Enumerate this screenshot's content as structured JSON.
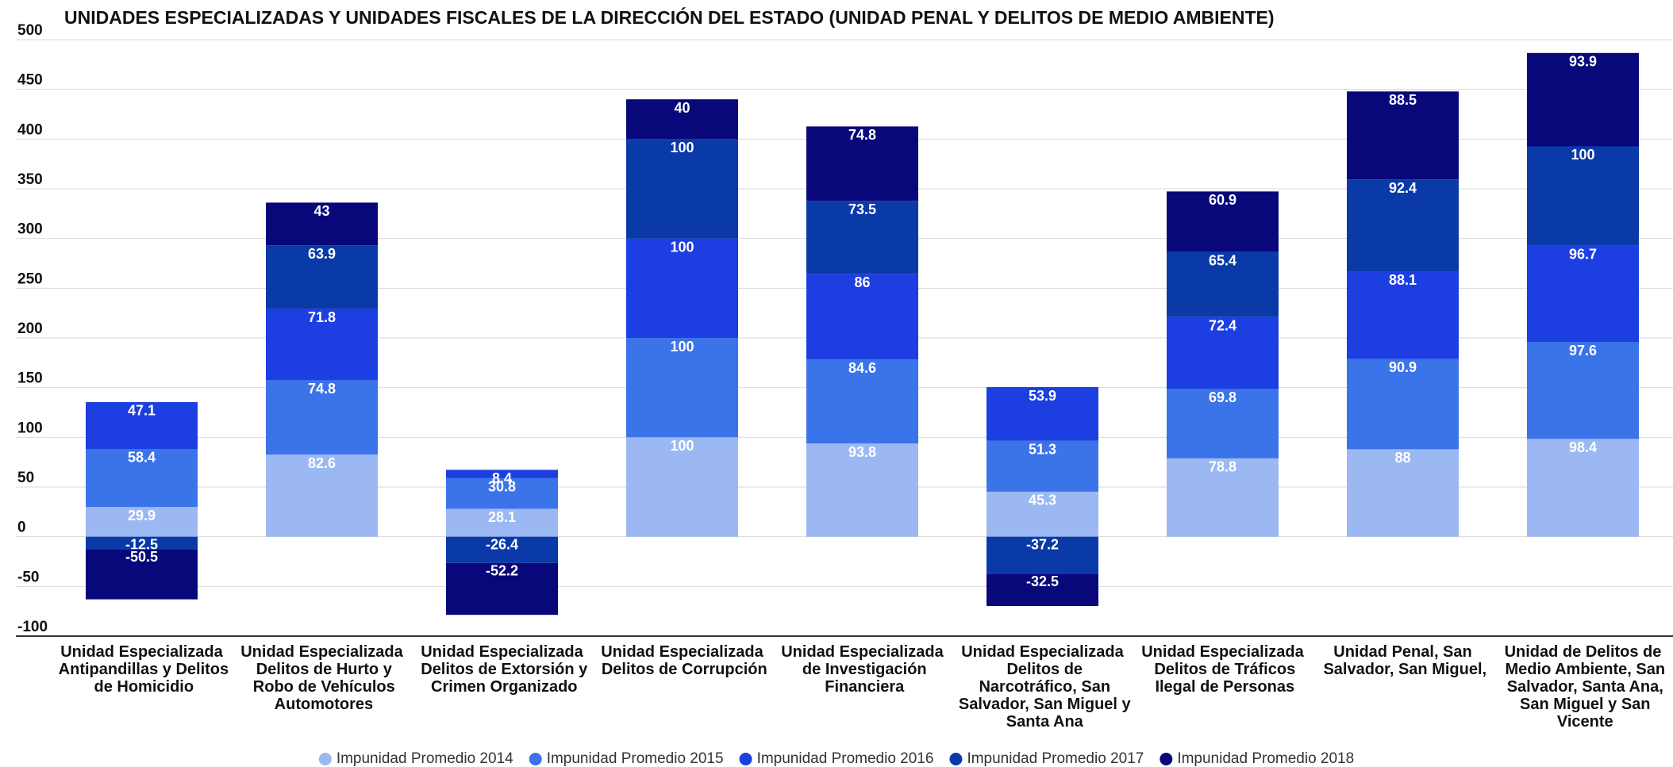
{
  "chart_data": {
    "type": "stacked_bar",
    "title": "UNIDADES ESPECIALIZADAS Y UNIDADES FISCALES DE LA DIRECCIÓN DEL ESTADO (UNIDAD PENAL Y DELITOS DE MEDIO AMBIENTE)",
    "categories": [
      "Unidad Especializada Antipandillas y Delitos de Homicidio",
      "Unidad Especializada Delitos de Hurto y Robo de Vehículos Automotores",
      "Unidad Especializada Delitos de Extorsión y Crimen Organizado",
      "Unidad Especializada Delitos de Corrupción",
      "Unidad Especializada de Investigación Financiera",
      "Unidad Especializada Delitos de Narcotráfico, San Salvador, San Miguel y Santa Ana",
      "Unidad Especializada Delitos de Tráficos Ilegal de Personas",
      "Unidad Penal, San Salvador, San Miguel,",
      "Unidad de Delitos de Medio Ambiente, San Salvador, Santa Ana, San Miguel y San Vicente"
    ],
    "series": [
      {
        "name": "Impunidad Promedio 2014",
        "color": "#9bb8f3",
        "values": [
          29.9,
          82.6,
          28.1,
          100,
          93.8,
          45.3,
          78.8,
          88,
          98.4
        ]
      },
      {
        "name": "Impunidad Promedio 2015",
        "color": "#3b73e8",
        "values": [
          58.4,
          74.8,
          30.8,
          100,
          84.6,
          51.3,
          69.8,
          90.9,
          97.6
        ]
      },
      {
        "name": "Impunidad Promedio 2016",
        "color": "#1d3ee0",
        "values": [
          47.1,
          71.8,
          8.4,
          100,
          86,
          53.9,
          72.4,
          88.1,
          96.7
        ]
      },
      {
        "name": "Impunidad Promedio 2017",
        "color": "#0a3aa8",
        "values": [
          -12.5,
          63.9,
          -26.4,
          100,
          73.5,
          -37.2,
          65.4,
          92.4,
          100
        ]
      },
      {
        "name": "Impunidad Promedio 2018",
        "color": "#08087a",
        "values": [
          -50.5,
          43,
          -52.2,
          40,
          74.8,
          -32.5,
          60.9,
          88.5,
          93.9
        ]
      }
    ],
    "ylim": [
      -100,
      500
    ],
    "yticks": [
      -100,
      -50,
      0,
      50,
      100,
      150,
      200,
      250,
      300,
      350,
      400,
      450,
      500
    ],
    "grid": true,
    "legend": "bottom"
  }
}
